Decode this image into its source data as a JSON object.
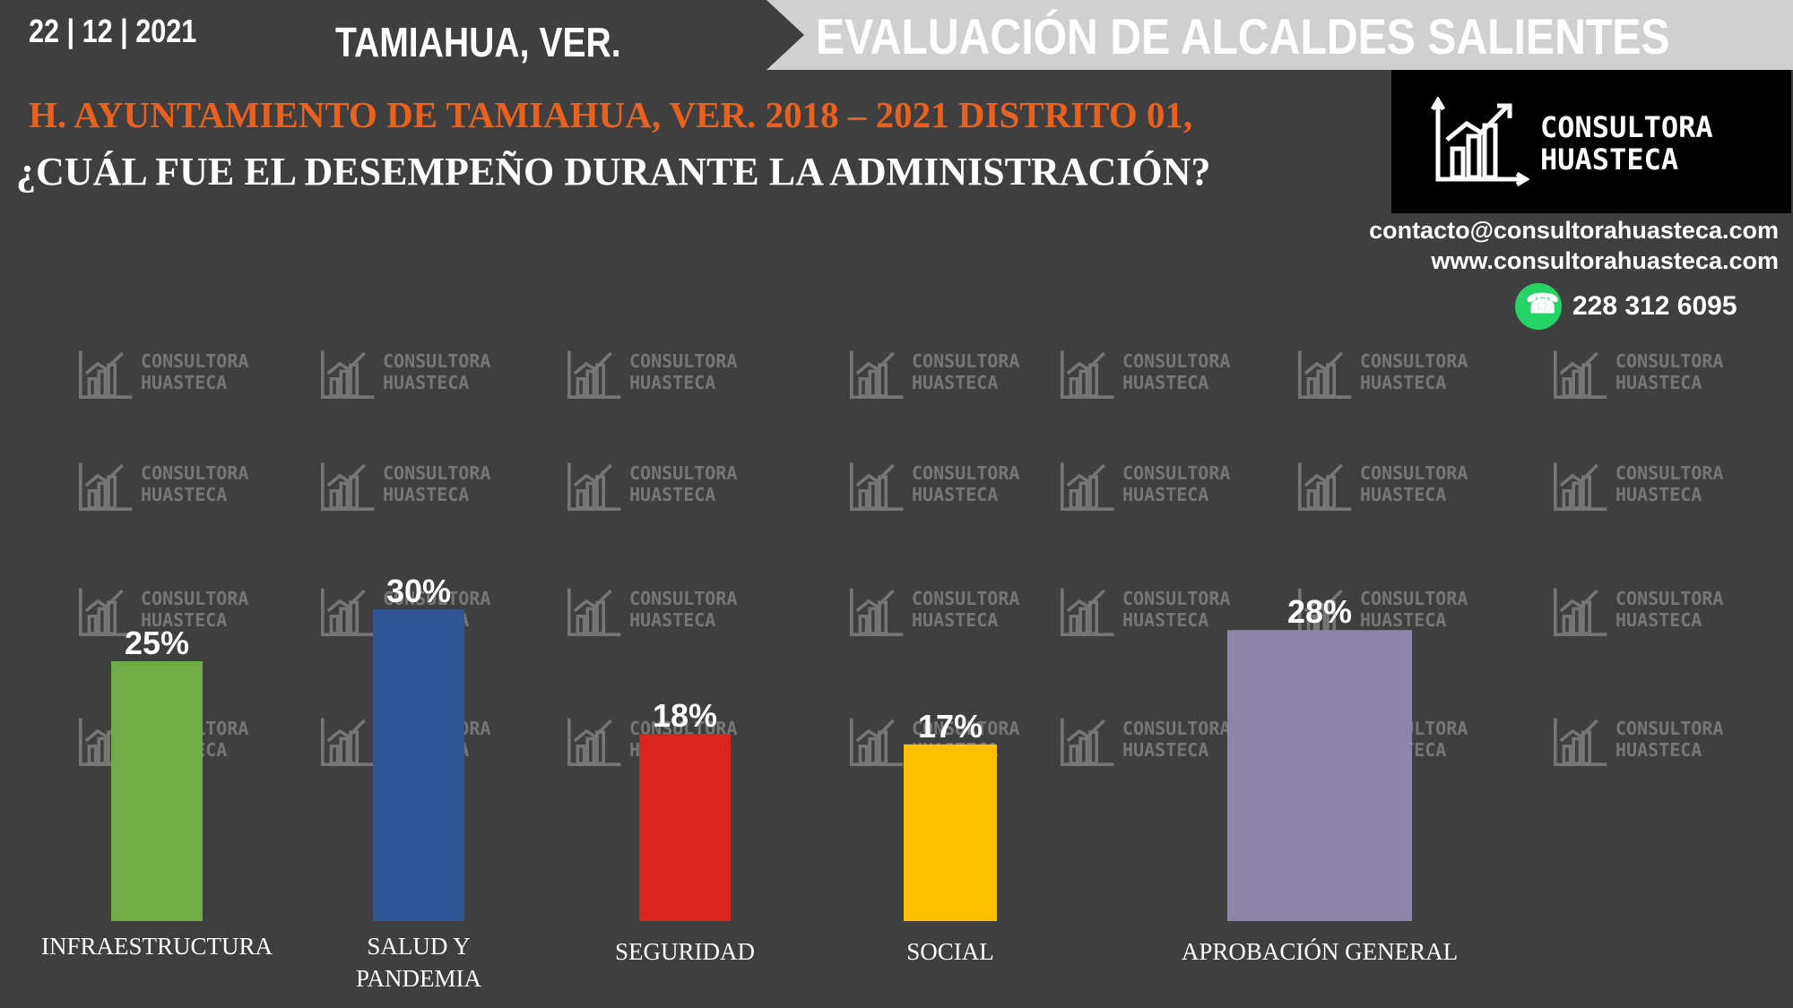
{
  "header": {
    "date": "22 | 12 | 2021",
    "place": "TAMIAHUA, VER.",
    "banner": "EVALUACIÓN DE ALCALDES SALIENTES",
    "subtitle": "H. AYUNTAMIENTO DE TAMIAHUA, VER. 2018 – 2021 DISTRITO 01,",
    "question": "¿CUÁL FUE EL DESEMPEÑO DURANTE LA ADMINISTRACIÓN?"
  },
  "brand": {
    "line1": "CONSULTORA",
    "line2": "HUASTECA",
    "email": "contacto@consultorahuasteca.com",
    "web": "www.consultorahuasteca.com",
    "phone": "228 312 6095",
    "phone_icon": "whatsapp-icon"
  },
  "watermark": {
    "line1": "CONSULTORA",
    "line2": "HUASTECA"
  },
  "chart_data": {
    "type": "bar",
    "categories": [
      "INFRAESTRUCTURA",
      "SALUD Y PANDEMIA",
      "SEGURIDAD",
      "SOCIAL",
      "APROBACIÓN GENERAL"
    ],
    "values": [
      25,
      30,
      18,
      17,
      28
    ],
    "value_labels": [
      "25%",
      "30%",
      "18%",
      "17%",
      "28%"
    ],
    "colors": [
      "#70ad47",
      "#2f5597",
      "#d9251d",
      "#ffc000",
      "#8e86aa"
    ],
    "ylim": [
      0,
      30
    ]
  }
}
